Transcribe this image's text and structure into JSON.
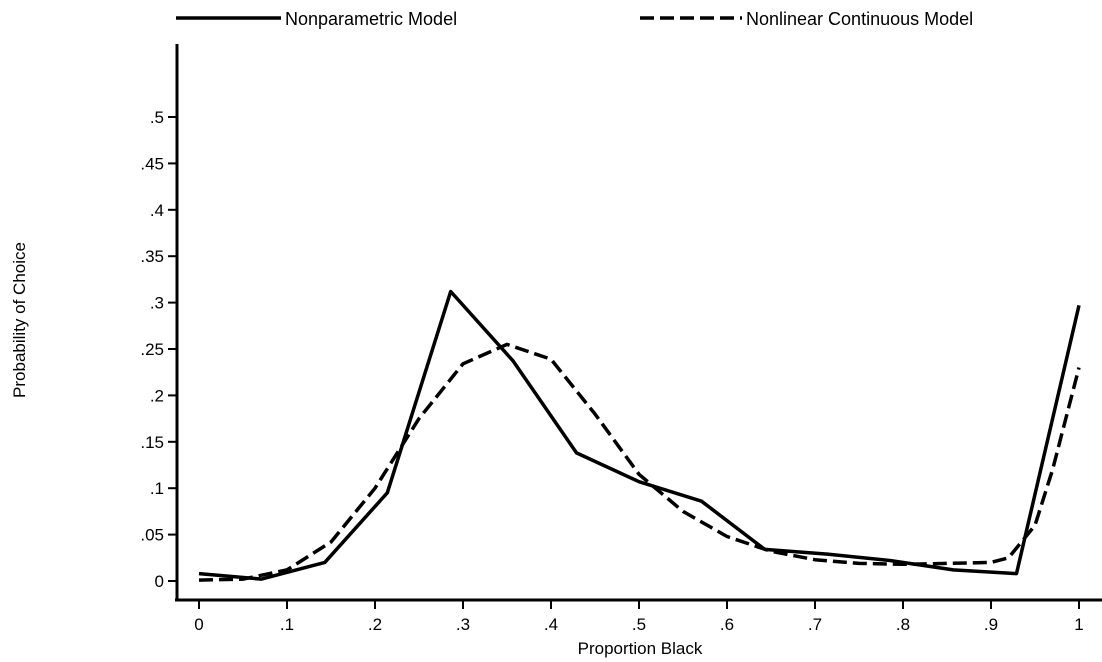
{
  "chart_data": {
    "type": "line",
    "title": "",
    "xlabel": "Proportion Black",
    "ylabel": "Probability of Choice",
    "xlim": [
      0,
      1
    ],
    "ylim": [
      0,
      0.5
    ],
    "x_ticks": [
      {
        "value": 0,
        "label": "0"
      },
      {
        "value": 0.1,
        "label": ".1"
      },
      {
        "value": 0.2,
        "label": ".2"
      },
      {
        "value": 0.3,
        "label": ".3"
      },
      {
        "value": 0.4,
        "label": ".4"
      },
      {
        "value": 0.5,
        "label": ".5"
      },
      {
        "value": 0.6,
        "label": ".6"
      },
      {
        "value": 0.7,
        "label": ".7"
      },
      {
        "value": 0.8,
        "label": ".8"
      },
      {
        "value": 0.9,
        "label": ".9"
      },
      {
        "value": 1,
        "label": "1"
      }
    ],
    "y_ticks": [
      {
        "value": 0,
        "label": "0"
      },
      {
        "value": 0.05,
        "label": ".05"
      },
      {
        "value": 0.1,
        "label": ".1"
      },
      {
        "value": 0.15,
        "label": ".15"
      },
      {
        "value": 0.2,
        "label": ".2"
      },
      {
        "value": 0.25,
        "label": ".25"
      },
      {
        "value": 0.3,
        "label": ".3"
      },
      {
        "value": 0.35,
        "label": ".35"
      },
      {
        "value": 0.4,
        "label": ".4"
      },
      {
        "value": 0.45,
        "label": ".45"
      },
      {
        "value": 0.5,
        "label": ".5"
      }
    ],
    "grid": false,
    "legend": "top",
    "series": [
      {
        "name": "Nonparametric Model",
        "style": "solid",
        "color": "#000000",
        "x": [
          0,
          0.071,
          0.143,
          0.214,
          0.286,
          0.357,
          0.429,
          0.5,
          0.571,
          0.643,
          0.714,
          0.786,
          0.857,
          0.929,
          1.0
        ],
        "y": [
          0.008,
          0.002,
          0.02,
          0.095,
          0.312,
          0.237,
          0.138,
          0.107,
          0.086,
          0.034,
          0.029,
          0.022,
          0.012,
          0.008,
          0.297
        ]
      },
      {
        "name": "Nonlinear Continuous Model",
        "style": "dashed",
        "color": "#000000",
        "x": [
          0,
          0.05,
          0.1,
          0.15,
          0.2,
          0.25,
          0.3,
          0.35,
          0.4,
          0.45,
          0.5,
          0.55,
          0.6,
          0.65,
          0.7,
          0.75,
          0.8,
          0.85,
          0.9,
          0.92,
          0.95,
          0.97,
          1.0
        ],
        "y": [
          0.001,
          0.002,
          0.012,
          0.042,
          0.1,
          0.175,
          0.234,
          0.255,
          0.239,
          0.18,
          0.115,
          0.075,
          0.048,
          0.032,
          0.023,
          0.019,
          0.018,
          0.019,
          0.02,
          0.025,
          0.06,
          0.12,
          0.23
        ]
      }
    ]
  }
}
